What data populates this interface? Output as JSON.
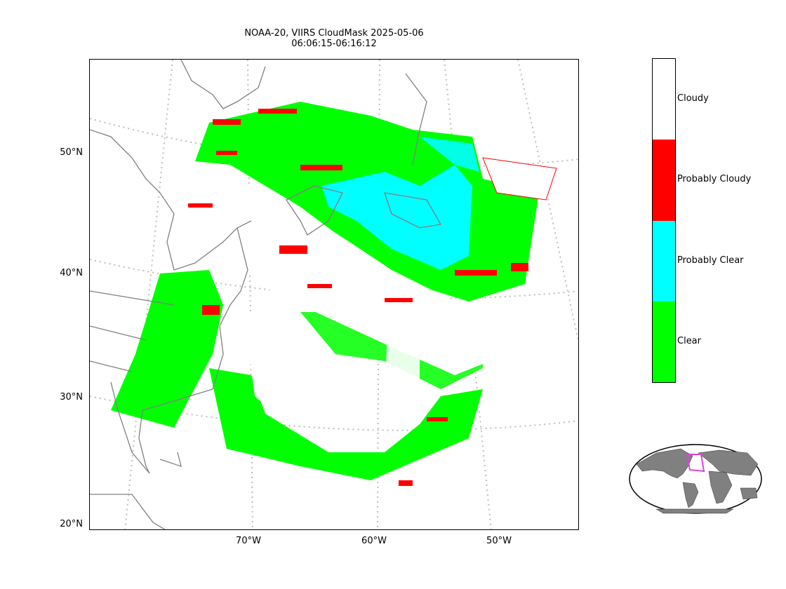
{
  "title_line1": "NOAA-20, VIIRS CloudMask 2025-05-06",
  "title_line2": "06:06:15-06:16:12",
  "lat_labels": [
    "50°N",
    "40°N",
    "30°N",
    "20°N"
  ],
  "lon_labels": [
    "70°W",
    "60°W",
    "50°W"
  ],
  "colorbar": [
    {
      "label": "Cloudy",
      "color": "#ffffff"
    },
    {
      "label": "Probably Cloudy",
      "color": "#ff0000"
    },
    {
      "label": "Probably Clear",
      "color": "#00ffff"
    },
    {
      "label": "Clear",
      "color": "#00ff00"
    }
  ],
  "colors": {
    "coast": "#808080",
    "grid": "#bdbdbd",
    "inset_land": "#808080",
    "inset_box": "#e040e0"
  }
}
